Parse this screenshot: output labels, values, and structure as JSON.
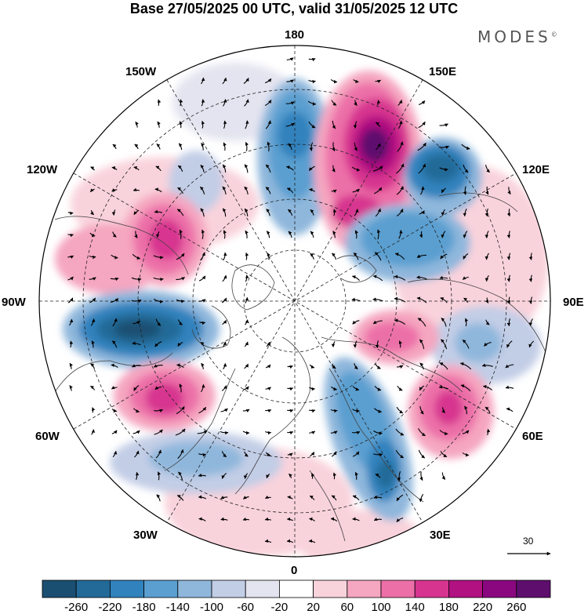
{
  "title": "Base 27/05/2025 00 UTC, valid 31/05/2025 12 UTC",
  "brand": "MODES",
  "brand_mark": "©",
  "longitude_labels": {
    "lon_180": "180",
    "lon_150e": "150E",
    "lon_120e": "120E",
    "lon_90e": "90E",
    "lon_60e": "60E",
    "lon_30e": "30E",
    "lon_0": "0",
    "lon_30w": "30W",
    "lon_60w": "60W",
    "lon_90w": "90W",
    "lon_120w": "120W",
    "lon_150w": "150W"
  },
  "vector_scale_label": "30",
  "colorbar": {
    "labels": [
      "-260",
      "-220",
      "-180",
      "-140",
      "-100",
      "-60",
      "-20",
      "20",
      "60",
      "100",
      "140",
      "180",
      "220",
      "260"
    ],
    "colors": [
      "#1b4f72",
      "#236a98",
      "#3182bd",
      "#5a9fd0",
      "#8fb7dc",
      "#c2cde6",
      "#e4e4f0",
      "#ffffff",
      "#f9d3dc",
      "#f5a6c0",
      "#ec6fa8",
      "#d7348f",
      "#b11181",
      "#8a0780",
      "#5e0f6e"
    ]
  },
  "map_features": {
    "projection": "north-polar-stereographic",
    "graticule": "dashed",
    "coastlines": true,
    "wind_vectors": true
  }
}
